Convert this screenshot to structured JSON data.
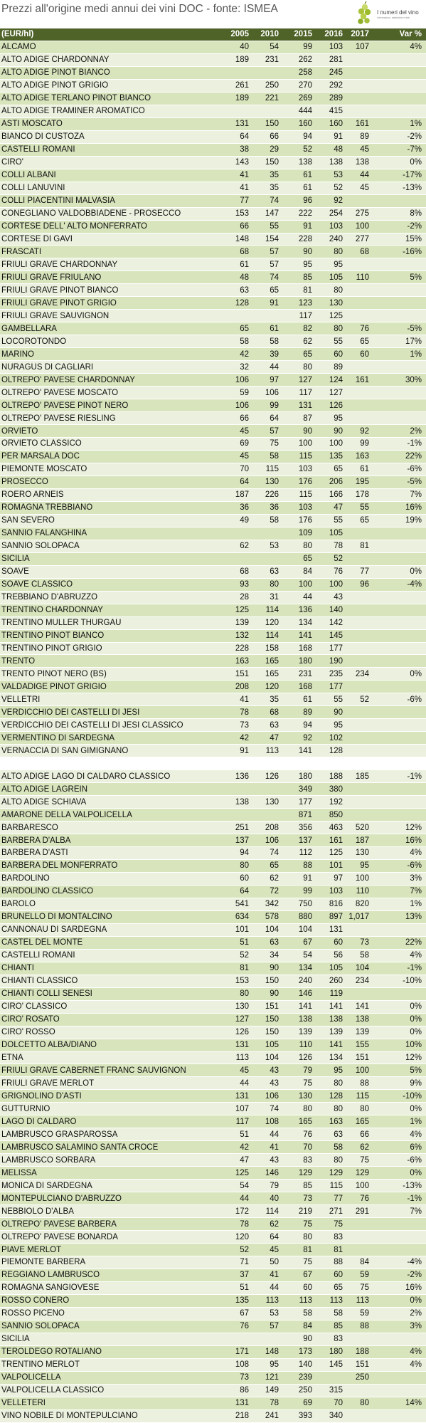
{
  "title": "Prezzi all'origine medi annui dei vini DOC - fonte: ISMEA",
  "logo": {
    "label": "I numeri del vino",
    "tagline": "informazioni, statistiche e dati"
  },
  "columns": [
    "(EUR/hl)",
    "2005",
    "2010",
    "2015",
    "2016",
    "2017",
    "Var %"
  ],
  "rows": [
    [
      "ALCAMO",
      "40",
      "54",
      "99",
      "103",
      "107",
      "4%"
    ],
    [
      "ALTO ADIGE CHARDONNAY",
      "189",
      "231",
      "262",
      "281",
      "",
      ""
    ],
    [
      "ALTO ADIGE PINOT BIANCO",
      "",
      "",
      "258",
      "245",
      "",
      ""
    ],
    [
      "ALTO ADIGE PINOT GRIGIO",
      "261",
      "250",
      "270",
      "292",
      "",
      ""
    ],
    [
      "ALTO ADIGE TERLANO PINOT BIANCO",
      "189",
      "221",
      "269",
      "289",
      "",
      ""
    ],
    [
      "ALTO ADIGE TRAMINER AROMATICO",
      "",
      "",
      "444",
      "415",
      "",
      ""
    ],
    [
      "ASTI MOSCATO",
      "131",
      "150",
      "160",
      "160",
      "161",
      "1%"
    ],
    [
      "BIANCO DI CUSTOZA",
      "64",
      "66",
      "94",
      "91",
      "89",
      "-2%"
    ],
    [
      "CASTELLI ROMANI",
      "38",
      "29",
      "52",
      "48",
      "45",
      "-7%"
    ],
    [
      "CIRO'",
      "143",
      "150",
      "138",
      "138",
      "138",
      "0%"
    ],
    [
      "COLLI ALBANI",
      "41",
      "35",
      "61",
      "53",
      "44",
      "-17%"
    ],
    [
      "COLLI LANUVINI",
      "41",
      "35",
      "61",
      "52",
      "45",
      "-13%"
    ],
    [
      "COLLI PIACENTINI MALVASIA",
      "77",
      "74",
      "96",
      "92",
      "",
      ""
    ],
    [
      "CONEGLIANO VALDOBBIADENE - PROSECCO",
      "153",
      "147",
      "222",
      "254",
      "275",
      "8%"
    ],
    [
      "CORTESE DELL' ALTO MONFERRATO",
      "66",
      "55",
      "91",
      "103",
      "100",
      "-2%"
    ],
    [
      "CORTESE DI GAVI",
      "148",
      "154",
      "228",
      "240",
      "277",
      "15%"
    ],
    [
      "FRASCATI",
      "68",
      "57",
      "90",
      "80",
      "68",
      "-16%"
    ],
    [
      "FRIULI GRAVE CHARDONNAY",
      "61",
      "57",
      "95",
      "95",
      "",
      ""
    ],
    [
      "FRIULI GRAVE FRIULANO",
      "48",
      "74",
      "85",
      "105",
      "110",
      "5%"
    ],
    [
      "FRIULI GRAVE PINOT BIANCO",
      "63",
      "65",
      "81",
      "80",
      "",
      ""
    ],
    [
      "FRIULI GRAVE PINOT GRIGIO",
      "128",
      "91",
      "123",
      "130",
      "",
      ""
    ],
    [
      "FRIULI GRAVE SAUVIGNON",
      "",
      "",
      "117",
      "125",
      "",
      ""
    ],
    [
      "GAMBELLARA",
      "65",
      "61",
      "82",
      "80",
      "76",
      "-5%"
    ],
    [
      "LOCOROTONDO",
      "58",
      "58",
      "62",
      "55",
      "65",
      "17%"
    ],
    [
      "MARINO",
      "42",
      "39",
      "65",
      "60",
      "60",
      "1%"
    ],
    [
      "NURAGUS DI CAGLIARI",
      "32",
      "44",
      "80",
      "89",
      "",
      ""
    ],
    [
      "OLTREPO' PAVESE CHARDONNAY",
      "106",
      "97",
      "127",
      "124",
      "161",
      "30%"
    ],
    [
      "OLTREPO' PAVESE MOSCATO",
      "59",
      "106",
      "117",
      "127",
      "",
      ""
    ],
    [
      "OLTREPO' PAVESE PINOT NERO",
      "106",
      "99",
      "131",
      "126",
      "",
      ""
    ],
    [
      "OLTREPO' PAVESE RIESLING",
      "66",
      "64",
      "87",
      "95",
      "",
      ""
    ],
    [
      "ORVIETO",
      "45",
      "57",
      "90",
      "90",
      "92",
      "2%"
    ],
    [
      "ORVIETO CLASSICO",
      "69",
      "75",
      "100",
      "100",
      "99",
      "-1%"
    ],
    [
      "PER MARSALA DOC",
      "45",
      "58",
      "115",
      "135",
      "163",
      "22%"
    ],
    [
      "PIEMONTE MOSCATO",
      "70",
      "115",
      "103",
      "65",
      "61",
      "-6%"
    ],
    [
      "PROSECCO",
      "64",
      "130",
      "176",
      "206",
      "195",
      "-5%"
    ],
    [
      "ROERO ARNEIS",
      "187",
      "226",
      "115",
      "166",
      "178",
      "7%"
    ],
    [
      "ROMAGNA TREBBIANO",
      "36",
      "36",
      "103",
      "47",
      "55",
      "16%"
    ],
    [
      "SAN SEVERO",
      "49",
      "58",
      "176",
      "55",
      "65",
      "19%"
    ],
    [
      "SANNIO FALANGHINA",
      "",
      "",
      "109",
      "105",
      "",
      ""
    ],
    [
      "SANNIO SOLOPACA",
      "62",
      "53",
      "80",
      "78",
      "81",
      ""
    ],
    [
      "SICILIA",
      "",
      "",
      "65",
      "52",
      "",
      ""
    ],
    [
      "SOAVE",
      "68",
      "63",
      "84",
      "76",
      "77",
      "0%"
    ],
    [
      "SOAVE CLASSICO",
      "93",
      "80",
      "100",
      "100",
      "96",
      "-4%"
    ],
    [
      "TREBBIANO D'ABRUZZO",
      "28",
      "31",
      "44",
      "43",
      "",
      ""
    ],
    [
      "TRENTINO CHARDONNAY",
      "125",
      "114",
      "136",
      "140",
      "",
      ""
    ],
    [
      "TRENTINO MULLER THURGAU",
      "139",
      "120",
      "134",
      "142",
      "",
      ""
    ],
    [
      "TRENTINO PINOT BIANCO",
      "132",
      "114",
      "141",
      "145",
      "",
      ""
    ],
    [
      "TRENTINO PINOT GRIGIO",
      "228",
      "158",
      "168",
      "177",
      "",
      ""
    ],
    [
      "TRENTO",
      "163",
      "165",
      "180",
      "190",
      "",
      ""
    ],
    [
      "TRENTO PINOT NERO (BS)",
      "151",
      "165",
      "231",
      "235",
      "234",
      "0%"
    ],
    [
      "VALDADIGE PINOT GRIGIO",
      "208",
      "120",
      "168",
      "177",
      "",
      ""
    ],
    [
      "VELLETRI",
      "41",
      "35",
      "61",
      "55",
      "52",
      "-6%"
    ],
    [
      "VERDICCHIO DEI CASTELLI DI JESI",
      "78",
      "68",
      "89",
      "90",
      "",
      ""
    ],
    [
      "VERDICCHIO DEI CASTELLI DI JESI CLASSICO",
      "73",
      "63",
      "94",
      "95",
      "",
      ""
    ],
    [
      "VERMENTINO DI SARDEGNA",
      "42",
      "47",
      "92",
      "102",
      "",
      ""
    ],
    [
      "VERNACCIA DI SAN GIMIGNANO",
      "91",
      "113",
      "141",
      "128",
      "",
      ""
    ],
    [
      "",
      "",
      "",
      "",
      "",
      "",
      ""
    ],
    [
      "ALTO ADIGE LAGO DI CALDARO CLASSICO",
      "136",
      "126",
      "180",
      "188",
      "185",
      "-1%"
    ],
    [
      "ALTO ADIGE LAGREIN",
      "",
      "",
      "349",
      "380",
      "",
      ""
    ],
    [
      "ALTO ADIGE SCHIAVA",
      "138",
      "130",
      "177",
      "192",
      "",
      ""
    ],
    [
      "AMARONE DELLA VALPOLICELLA",
      "",
      "",
      "871",
      "850",
      "",
      ""
    ],
    [
      "BARBARESCO",
      "251",
      "208",
      "356",
      "463",
      "520",
      "12%"
    ],
    [
      "BARBERA D'ALBA",
      "137",
      "106",
      "137",
      "161",
      "187",
      "16%"
    ],
    [
      "BARBERA D'ASTI",
      "94",
      "74",
      "112",
      "125",
      "130",
      "4%"
    ],
    [
      "BARBERA DEL MONFERRATO",
      "80",
      "65",
      "88",
      "101",
      "95",
      "-6%"
    ],
    [
      "BARDOLINO",
      "60",
      "62",
      "91",
      "97",
      "100",
      "3%"
    ],
    [
      "BARDOLINO CLASSICO",
      "64",
      "72",
      "99",
      "103",
      "110",
      "7%"
    ],
    [
      "BAROLO",
      "541",
      "342",
      "750",
      "816",
      "820",
      "1%"
    ],
    [
      "BRUNELLO DI MONTALCINO",
      "634",
      "578",
      "880",
      "897",
      "1,017",
      "13%"
    ],
    [
      "CANNONAU DI SARDEGNA",
      "101",
      "104",
      "104",
      "131",
      "",
      ""
    ],
    [
      "CASTEL DEL MONTE",
      "51",
      "63",
      "67",
      "60",
      "73",
      "22%"
    ],
    [
      "CASTELLI ROMANI",
      "52",
      "34",
      "54",
      "56",
      "58",
      "4%"
    ],
    [
      "CHIANTI",
      "81",
      "90",
      "134",
      "105",
      "104",
      "-1%"
    ],
    [
      "CHIANTI CLASSICO",
      "153",
      "150",
      "240",
      "260",
      "234",
      "-10%"
    ],
    [
      "CHIANTI COLLI SENESI",
      "80",
      "90",
      "146",
      "119",
      "",
      ""
    ],
    [
      "CIRO' CLASSICO",
      "130",
      "151",
      "141",
      "141",
      "141",
      "0%"
    ],
    [
      "CIRO' ROSATO",
      "127",
      "150",
      "138",
      "138",
      "138",
      "0%"
    ],
    [
      "CIRO' ROSSO",
      "126",
      "150",
      "139",
      "139",
      "139",
      "0%"
    ],
    [
      "DOLCETTO ALBA/DIANO",
      "131",
      "105",
      "110",
      "141",
      "155",
      "10%"
    ],
    [
      "ETNA",
      "113",
      "104",
      "126",
      "134",
      "151",
      "12%"
    ],
    [
      "FRIULI GRAVE CABERNET FRANC SAUVIGNON",
      "45",
      "43",
      "79",
      "95",
      "100",
      "5%"
    ],
    [
      "FRIULI GRAVE MERLOT",
      "44",
      "43",
      "75",
      "80",
      "88",
      "9%"
    ],
    [
      "GRIGNOLINO D'ASTI",
      "131",
      "106",
      "130",
      "128",
      "115",
      "-10%"
    ],
    [
      "GUTTURNIO",
      "107",
      "74",
      "80",
      "80",
      "80",
      "0%"
    ],
    [
      "LAGO DI CALDARO",
      "117",
      "108",
      "165",
      "163",
      "165",
      "1%"
    ],
    [
      "LAMBRUSCO GRASPAROSSA",
      "51",
      "44",
      "76",
      "63",
      "66",
      "4%"
    ],
    [
      "LAMBRUSCO SALAMINO SANTA CROCE",
      "42",
      "41",
      "70",
      "58",
      "62",
      "6%"
    ],
    [
      "LAMBRUSCO SORBARA",
      "47",
      "43",
      "83",
      "80",
      "75",
      "-6%"
    ],
    [
      "MELISSA",
      "125",
      "146",
      "129",
      "129",
      "129",
      "0%"
    ],
    [
      "MONICA DI SARDEGNA",
      "54",
      "79",
      "85",
      "115",
      "100",
      "-13%"
    ],
    [
      "MONTEPULCIANO D'ABRUZZO",
      "44",
      "40",
      "73",
      "77",
      "76",
      "-1%"
    ],
    [
      "NEBBIOLO D'ALBA",
      "172",
      "114",
      "219",
      "271",
      "291",
      "7%"
    ],
    [
      "OLTREPO' PAVESE BARBERA",
      "78",
      "62",
      "75",
      "75",
      "",
      ""
    ],
    [
      "OLTREPO' PAVESE BONARDA",
      "120",
      "64",
      "80",
      "83",
      "",
      ""
    ],
    [
      "PIAVE MERLOT",
      "52",
      "45",
      "81",
      "81",
      "",
      ""
    ],
    [
      "PIEMONTE BARBERA",
      "71",
      "50",
      "75",
      "88",
      "84",
      "-4%"
    ],
    [
      "REGGIANO LAMBRUSCO",
      "37",
      "41",
      "67",
      "60",
      "59",
      "-2%"
    ],
    [
      "ROMAGNA SANGIOVESE",
      "51",
      "44",
      "60",
      "65",
      "75",
      "16%"
    ],
    [
      "ROSSO CONERO",
      "135",
      "113",
      "113",
      "113",
      "113",
      "0%"
    ],
    [
      "ROSSO PICENO",
      "67",
      "53",
      "58",
      "58",
      "59",
      "2%"
    ],
    [
      "SANNIO SOLOPACA",
      "76",
      "57",
      "84",
      "85",
      "88",
      "3%"
    ],
    [
      "SICILIA",
      "",
      "",
      "90",
      "83",
      "",
      ""
    ],
    [
      "TEROLDEGO ROTALIANO",
      "171",
      "148",
      "173",
      "180",
      "188",
      "4%"
    ],
    [
      "TRENTINO MERLOT",
      "108",
      "95",
      "140",
      "145",
      "151",
      "4%"
    ],
    [
      "VALPOLICELLA",
      "73",
      "121",
      "239",
      "",
      "250",
      ""
    ],
    [
      "VALPOLICELLA CLASSICO",
      "86",
      "149",
      "250",
      "315",
      "",
      ""
    ],
    [
      "VELLETERI",
      "131",
      "78",
      "69",
      "70",
      "80",
      "14%"
    ],
    [
      "VINO NOBILE DI MONTEPULCIANO",
      "218",
      "241",
      "393",
      "340",
      "",
      ""
    ]
  ],
  "colors": {
    "header_bg": "#4f6228",
    "row_odd": "#d8e4bc",
    "row_even": "#ebf1de",
    "logo_green": "#9bbb2d"
  }
}
